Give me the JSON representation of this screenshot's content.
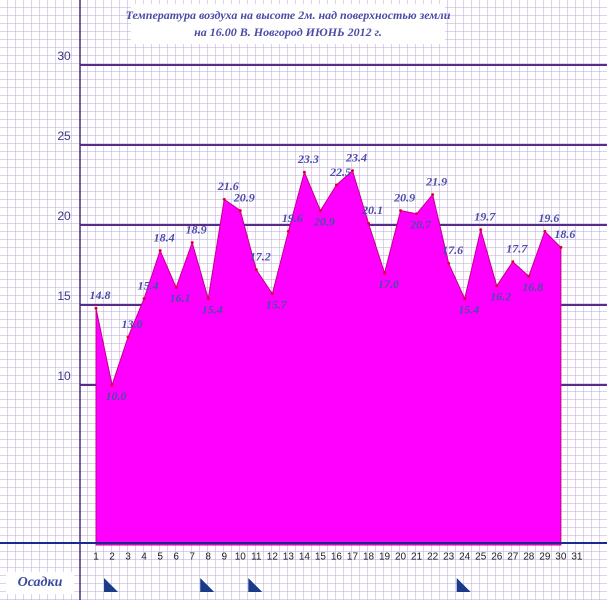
{
  "chart_data": {
    "type": "area",
    "title": "Температура воздуха на высоте 2м. над поверхностью земли",
    "subtitle": "на  16.00 В. Новгород ИЮНЬ  2012 г.",
    "categories": [
      "1",
      "2",
      "3",
      "4",
      "5",
      "6",
      "7",
      "8",
      "9",
      "10",
      "11",
      "12",
      "13",
      "14",
      "15",
      "16",
      "17",
      "18",
      "19",
      "20",
      "21",
      "22",
      "23",
      "24",
      "25",
      "26",
      "27",
      "28",
      "29",
      "30",
      "31"
    ],
    "values": [
      14.8,
      10.0,
      13.0,
      15.4,
      18.4,
      16.1,
      18.9,
      15.4,
      21.6,
      20.9,
      17.2,
      15.7,
      19.6,
      23.3,
      20.9,
      22.5,
      23.4,
      20.1,
      17.0,
      20.9,
      20.7,
      21.9,
      17.6,
      15.4,
      19.7,
      16.2,
      17.7,
      16.8,
      19.6,
      18.6,
      null
    ],
    "value_labels": [
      "14.8",
      "10.0",
      "13.0",
      "15.4",
      "18.4",
      "16.1",
      "18.9",
      "15.4",
      "21.6",
      "20.9",
      "17.2",
      "15.7",
      "19.6",
      "23.3",
      "20.9",
      "22.5",
      "23.4",
      "20.1",
      "17.0",
      "20.9",
      "20.7",
      "21.9",
      "17.6",
      "15.4",
      "19.7",
      "16.2",
      "17.7",
      "16.8",
      "19.6",
      "18.6",
      null
    ],
    "color": "#ff00ff",
    "ylim": [
      0,
      34
    ],
    "yticks": [
      10,
      15,
      20,
      25,
      30
    ],
    "grid": true,
    "precipitation_label": "Осадки",
    "precipitation_days": [
      2,
      8,
      11,
      24
    ]
  }
}
